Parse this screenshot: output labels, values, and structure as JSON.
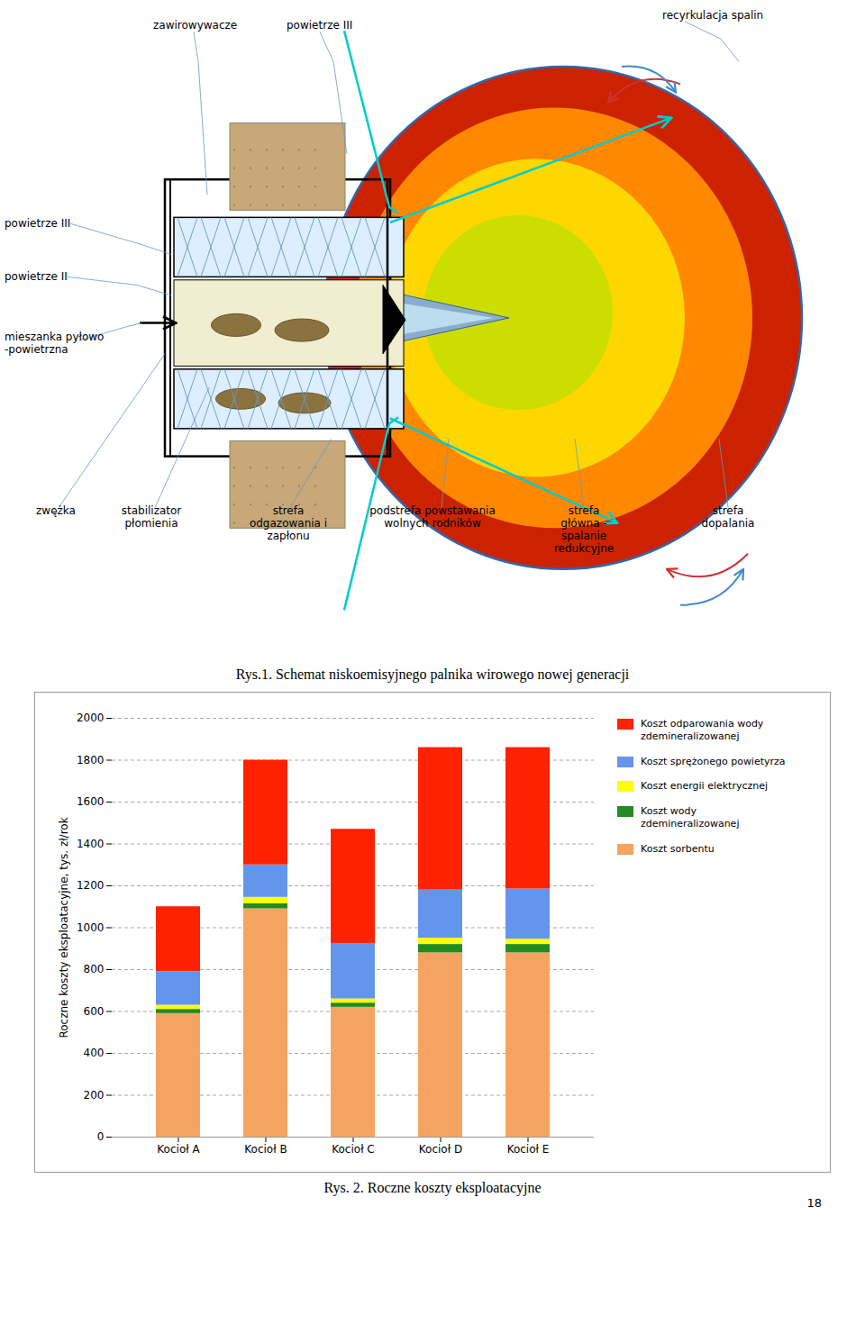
{
  "chart_data": {
    "type": "bar",
    "stacked": true,
    "title": "Rys. 2. Roczne koszty eksploatacyjne",
    "categories": [
      "Kocioł A",
      "Kocioł B",
      "Kocioł C",
      "Kocioł D",
      "Kocioł E"
    ],
    "series": [
      {
        "name": "Koszt sorbentu",
        "color": "#F4A460",
        "values": [
          590,
          1090,
          620,
          880,
          880
        ]
      },
      {
        "name": "Koszt wody\nzdemineralizowanej",
        "color": "#228B22",
        "values": [
          20,
          25,
          20,
          40,
          40
        ]
      },
      {
        "name": "Koszt energii elektrycznej",
        "color": "#FFFF00",
        "values": [
          20,
          30,
          20,
          30,
          25
        ]
      },
      {
        "name": "Koszt sprężonego powietyrza",
        "color": "#6495ED",
        "values": [
          160,
          155,
          265,
          230,
          240
        ]
      },
      {
        "name": "Koszt odparowania wody\nzdemineralizowanej",
        "color": "#FF2200",
        "values": [
          310,
          500,
          545,
          680,
          675
        ]
      }
    ],
    "ylabel": "Roczne koszty eksploatacyjne, tys. zł/rok",
    "ylim": [
      0,
      2000
    ],
    "yticks": [
      0,
      200,
      400,
      600,
      800,
      1000,
      1200,
      1400,
      1600,
      1800,
      2000
    ],
    "grid": true,
    "legend": "right",
    "annotations": [
      "recyrkulacja spalin",
      "zawirowywacze",
      "powietrze III",
      "powietrze III",
      "powietrze II",
      "mieszanka pyłowo\n-powietrzna",
      "zwężka",
      "stabilizator\npłomienia",
      "strefa\nodgazowania i\nzapłonu",
      "podstrefa powstawania\nwolnych rodników",
      "strefa\ngłówna -\nspalanie\nredukcyjne",
      "strefa\ndopalania",
      "Rys.1. Schemat niskoemisyjnego palnika wirowego nowej generacji",
      "18"
    ]
  }
}
